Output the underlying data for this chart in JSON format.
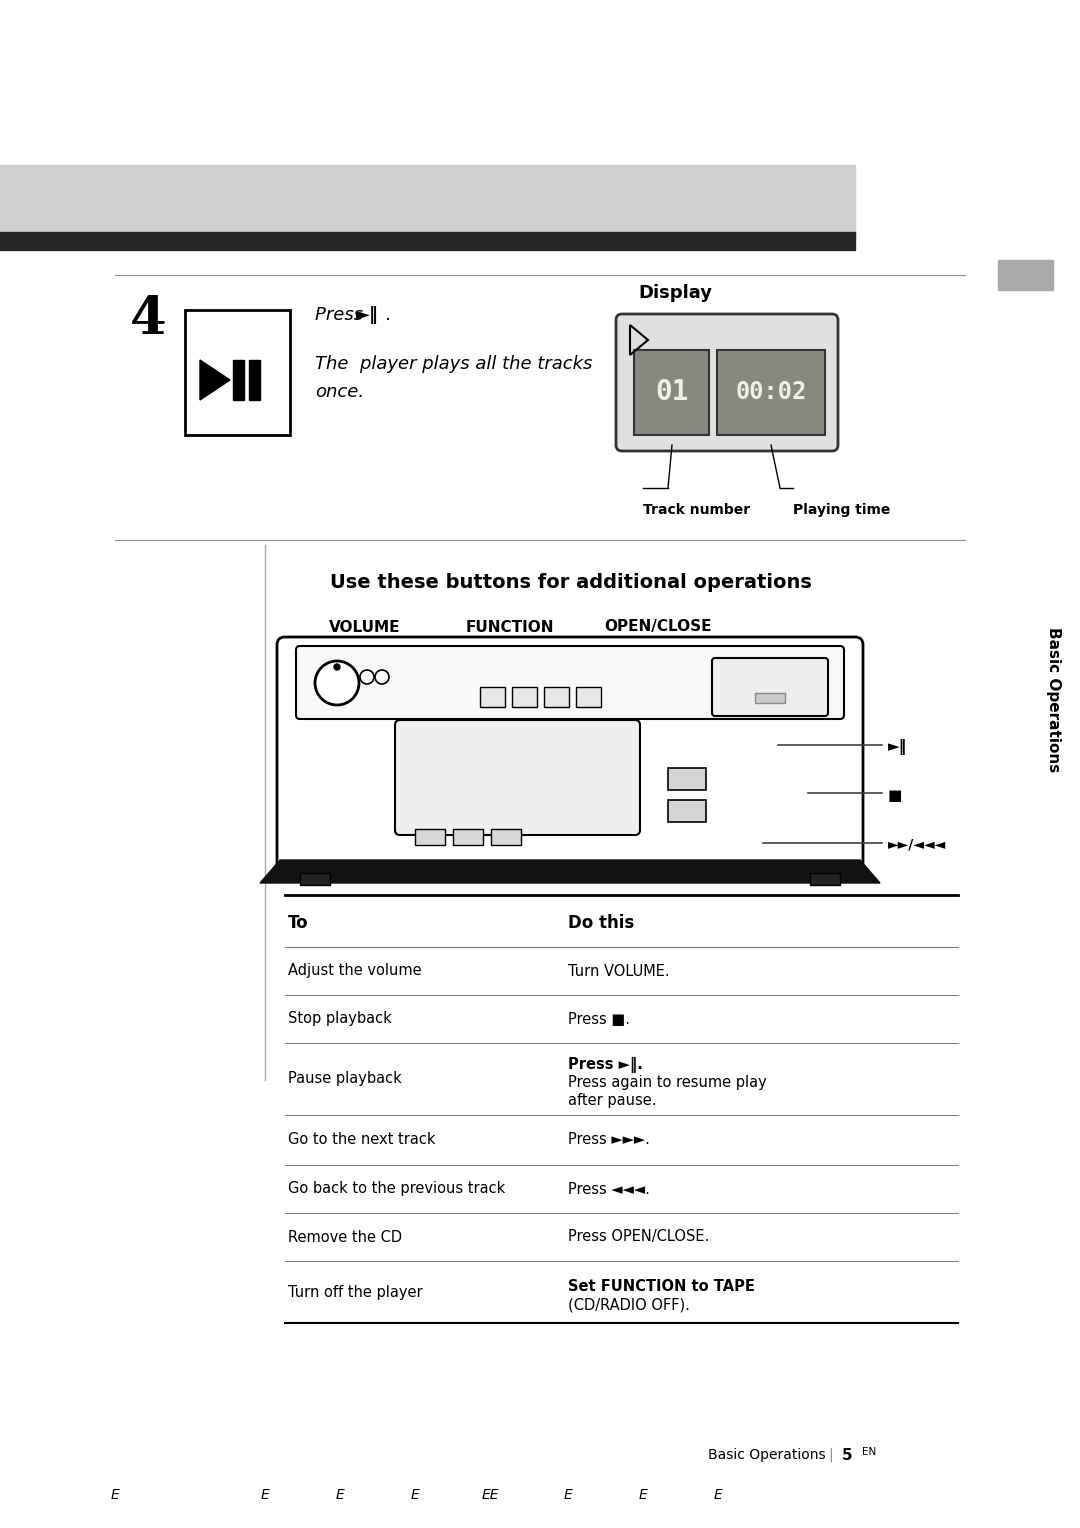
{
  "bg_color": "#ffffff",
  "header_gray": "#d0d0d0",
  "header_dark": "#252525",
  "sidebar_gray": "#aaaaaa",
  "step_number": "4",
  "display_label": "Display",
  "track_number_label": "Track number",
  "playing_time_label": "Playing time",
  "additional_ops_title": "Use these buttons for additional operations",
  "vol_label": "VOLUME",
  "func_label": "FUNCTION",
  "open_label": "OPEN/CLOSE",
  "table_header_to": "To",
  "table_header_do": "Do this",
  "table_rows_to": [
    "Adjust the volume",
    "Stop playback",
    "Pause playback",
    "Go to the next track",
    "Go back to the previous track",
    "Remove the CD",
    "Turn off the player"
  ],
  "table_rows_do": [
    "Turn VOLUME.",
    "Press ■.",
    "Press ►‖.\nPress again to resume play\nafter pause.",
    "Press ►►►.",
    "Press ◄◄◄.",
    "Press OPEN/CLOSE.",
    "Set FUNCTION to TAPE\n(CD/RADIO OFF)."
  ],
  "footer_text": "Basic Operations",
  "footer_num": "5",
  "bottom_chars": [
    "E",
    "E",
    "E",
    "E",
    "EE",
    "E",
    "E",
    "E"
  ],
  "lcd_bg": "#3a3a3a",
  "lcd_seg": "#c8c8b0",
  "lcd_outer": "#555555"
}
